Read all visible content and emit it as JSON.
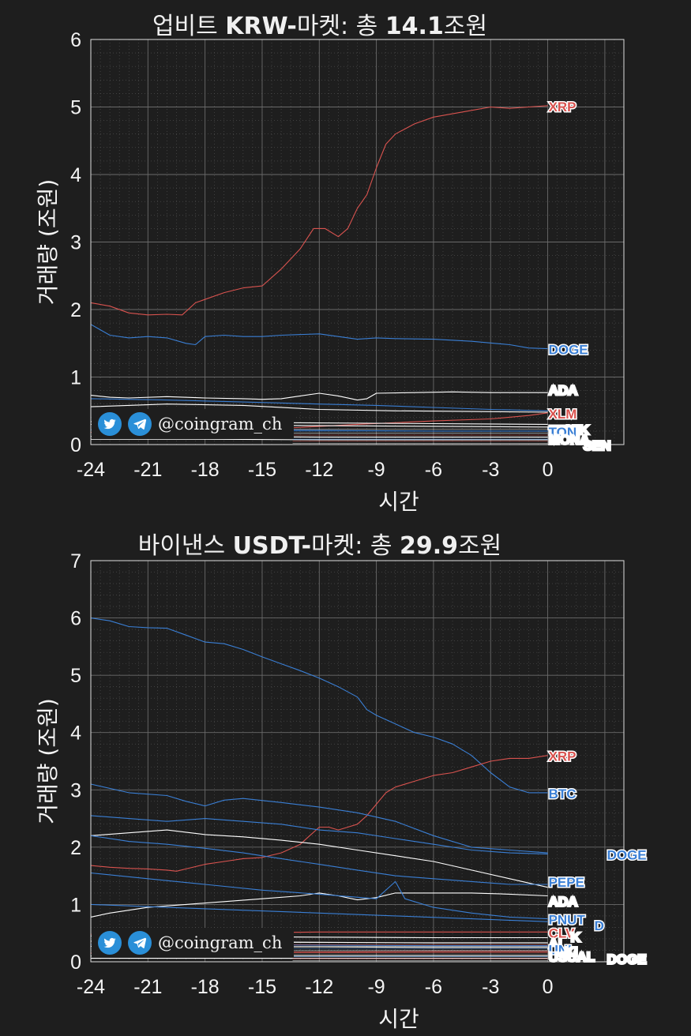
{
  "charts": [
    {
      "title_prefix": "업비트 ",
      "title_bold1": "KRW-",
      "title_mid": "마켓: 총 ",
      "title_bold2": "14.1",
      "title_suffix": "조원",
      "ylabel": "거래량 (조원)",
      "xlabel": "시간",
      "credit": "@coingram_ch"
    },
    {
      "title_prefix": "바이낸스 ",
      "title_bold1": "USDT-",
      "title_mid": "마켓: 총 ",
      "title_bold2": "29.9",
      "title_suffix": "조원",
      "ylabel": "거래량 (조원)",
      "xlabel": "시간",
      "credit": "@coingram_ch"
    }
  ],
  "colors": {
    "background": "#1e1e1e",
    "red": "#d9534f",
    "blue": "#3a7fd5",
    "white": "#ffffff",
    "grid": "#6a6a6a"
  },
  "chart_data": [
    {
      "type": "line",
      "title": "업비트 KRW-마켓: 총 14.1조원",
      "xlabel": "시간",
      "ylabel": "거래량 (조원)",
      "xlim": [
        -24,
        4
      ],
      "ylim": [
        0,
        6
      ],
      "xticks": [
        -24,
        -21,
        -18,
        -15,
        -12,
        -9,
        -6,
        -3,
        0
      ],
      "yticks": [
        0,
        1,
        2,
        3,
        4,
        5,
        6
      ],
      "grid": true,
      "series": [
        {
          "name": "XRP",
          "color": "red",
          "labeled": true,
          "x": [
            -24,
            -23,
            -22,
            -21,
            -20,
            -19.2,
            -18.5,
            -17,
            -16,
            -15,
            -14,
            -13,
            -12.3,
            -11.7,
            -11,
            -10.5,
            -10,
            -9.5,
            -9,
            -8.5,
            -8,
            -7,
            -6,
            -4,
            -3,
            -2,
            -1,
            0
          ],
          "y": [
            2.1,
            2.05,
            1.95,
            1.92,
            1.93,
            1.92,
            2.1,
            2.25,
            2.32,
            2.35,
            2.6,
            2.9,
            3.2,
            3.2,
            3.08,
            3.2,
            3.5,
            3.7,
            4.1,
            4.45,
            4.6,
            4.75,
            4.85,
            4.95,
            5.0,
            4.98,
            5.0,
            5.02
          ]
        },
        {
          "name": "DOGE",
          "color": "blue",
          "labeled": true,
          "x": [
            -24,
            -23,
            -22,
            -21,
            -20,
            -19,
            -18.5,
            -18,
            -17,
            -16,
            -15,
            -14,
            -12,
            -11,
            -10,
            -9,
            -8,
            -6,
            -4,
            -2,
            -1,
            0
          ],
          "y": [
            1.78,
            1.62,
            1.58,
            1.6,
            1.58,
            1.5,
            1.48,
            1.6,
            1.62,
            1.6,
            1.6,
            1.62,
            1.64,
            1.6,
            1.56,
            1.58,
            1.57,
            1.56,
            1.53,
            1.48,
            1.43,
            1.42
          ]
        },
        {
          "name": "ADA",
          "color": "white",
          "labeled": true,
          "x": [
            -24,
            -23,
            -22,
            -20,
            -18,
            -16,
            -15,
            -14,
            -13,
            -12,
            -11,
            -10,
            -9.5,
            -9,
            -7,
            -5,
            -3,
            0
          ],
          "y": [
            0.73,
            0.7,
            0.69,
            0.71,
            0.69,
            0.68,
            0.67,
            0.68,
            0.72,
            0.76,
            0.72,
            0.66,
            0.68,
            0.76,
            0.77,
            0.78,
            0.77,
            0.77
          ]
        },
        {
          "name": "",
          "color": "blue",
          "labeled": false,
          "x": [
            -24,
            -20,
            -16,
            -12,
            -9,
            -6,
            -3,
            0
          ],
          "y": [
            0.68,
            0.66,
            0.63,
            0.6,
            0.58,
            0.55,
            0.52,
            0.5
          ]
        },
        {
          "name": "",
          "color": "white",
          "labeled": false,
          "x": [
            -24,
            -20,
            -16,
            -12,
            -8,
            -4,
            0
          ],
          "y": [
            0.56,
            0.6,
            0.58,
            0.52,
            0.5,
            0.49,
            0.48
          ]
        },
        {
          "name": "XLM",
          "color": "red",
          "labeled": true,
          "x": [
            -24,
            -18,
            -14,
            -10,
            -6,
            -3,
            -1,
            0
          ],
          "y": [
            0.18,
            0.2,
            0.24,
            0.3,
            0.35,
            0.38,
            0.43,
            0.47
          ]
        },
        {
          "name": "ETC",
          "color": "white",
          "labeled": true,
          "x": [
            -24,
            -18,
            -12,
            -6,
            0
          ],
          "y": [
            0.34,
            0.33,
            0.32,
            0.31,
            0.3
          ]
        },
        {
          "name": "HIK",
          "color": "white",
          "labeled": true,
          "x": [
            -24,
            -18,
            -12,
            -6,
            0
          ],
          "y": [
            0.3,
            0.29,
            0.28,
            0.27,
            0.26
          ]
        },
        {
          "name": "TON",
          "color": "blue",
          "labeled": true,
          "x": [
            -24,
            -18,
            -12,
            -6,
            0
          ],
          "y": [
            0.22,
            0.22,
            0.21,
            0.2,
            0.2
          ]
        },
        {
          "name": "MONA",
          "color": "white",
          "labeled": true,
          "x": [
            -24,
            -18,
            -12,
            -6,
            0
          ],
          "y": [
            0.12,
            0.12,
            0.11,
            0.11,
            0.11
          ]
        },
        {
          "name": "SEN",
          "color": "white",
          "labeled": true,
          "x": [
            -24,
            -18,
            -12,
            -6,
            0
          ],
          "y": [
            0.08,
            0.08,
            0.07,
            0.07,
            0.07
          ]
        }
      ]
    },
    {
      "type": "line",
      "title": "바이낸스 USDT-마켓: 총 29.9조원",
      "xlabel": "시간",
      "ylabel": "거래량 (조원)",
      "xlim": [
        -24,
        4
      ],
      "ylim": [
        0,
        7
      ],
      "xticks": [
        -24,
        -21,
        -18,
        -15,
        -12,
        -9,
        -6,
        -3,
        0
      ],
      "yticks": [
        0,
        1,
        2,
        3,
        4,
        5,
        6,
        7
      ],
      "grid": true,
      "series": [
        {
          "name": "BTC",
          "color": "blue",
          "labeled": true,
          "x": [
            -24,
            -23,
            -22,
            -21,
            -20,
            -19,
            -18,
            -17,
            -16,
            -15,
            -14,
            -13,
            -12,
            -11,
            -10,
            -9.5,
            -9,
            -8,
            -7,
            -6,
            -5,
            -4,
            -3,
            -2,
            -1,
            0
          ],
          "y": [
            6.0,
            5.95,
            5.85,
            5.83,
            5.82,
            5.7,
            5.58,
            5.55,
            5.45,
            5.32,
            5.2,
            5.08,
            4.95,
            4.8,
            4.62,
            4.4,
            4.3,
            4.15,
            4.0,
            3.92,
            3.8,
            3.6,
            3.3,
            3.05,
            2.95,
            2.95
          ]
        },
        {
          "name": "XRP",
          "color": "red",
          "labeled": true,
          "x": [
            -24,
            -23,
            -22,
            -21,
            -20,
            -19.5,
            -19,
            -18,
            -17,
            -16,
            -15,
            -14,
            -13,
            -12.5,
            -12,
            -11.5,
            -11,
            -10.5,
            -10,
            -9.5,
            -9,
            -8.5,
            -8,
            -7,
            -6,
            -5,
            -4,
            -3,
            -2,
            -1,
            0
          ],
          "y": [
            1.68,
            1.65,
            1.63,
            1.62,
            1.6,
            1.58,
            1.62,
            1.7,
            1.75,
            1.8,
            1.82,
            1.9,
            2.05,
            2.2,
            2.35,
            2.35,
            2.3,
            2.35,
            2.4,
            2.55,
            2.75,
            2.95,
            3.05,
            3.15,
            3.25,
            3.3,
            3.4,
            3.5,
            3.55,
            3.55,
            3.6
          ]
        },
        {
          "name": "",
          "color": "blue",
          "labeled": false,
          "x": [
            -24,
            -22,
            -20,
            -19,
            -18,
            -17,
            -16,
            -14,
            -12,
            -10,
            -8,
            -6,
            -4,
            -2,
            0
          ],
          "y": [
            3.1,
            2.95,
            2.9,
            2.8,
            2.72,
            2.82,
            2.85,
            2.78,
            2.7,
            2.6,
            2.45,
            2.2,
            2.0,
            1.95,
            1.9
          ]
        },
        {
          "name": "DOGE",
          "color": "blue",
          "labeled": true,
          "x": [
            -24,
            -22,
            -20,
            -18,
            -16,
            -14,
            -12,
            -10,
            -8,
            -6,
            -4,
            -2,
            0
          ],
          "y": [
            2.55,
            2.5,
            2.45,
            2.5,
            2.45,
            2.4,
            2.3,
            2.25,
            2.15,
            2.05,
            1.95,
            1.9,
            1.88
          ]
        },
        {
          "name": "",
          "color": "white",
          "labeled": false,
          "x": [
            -24,
            -22,
            -20,
            -18,
            -16,
            -14,
            -12,
            -10,
            -8,
            -6,
            -4,
            -2,
            0
          ],
          "y": [
            2.2,
            2.25,
            2.3,
            2.22,
            2.18,
            2.12,
            2.05,
            1.95,
            1.85,
            1.75,
            1.6,
            1.45,
            1.3
          ]
        },
        {
          "name": "PEPE",
          "color": "blue",
          "labeled": true,
          "x": [
            -24,
            -22,
            -20,
            -18,
            -16,
            -14,
            -12,
            -10,
            -8,
            -6,
            -4,
            -2,
            0
          ],
          "y": [
            2.2,
            2.1,
            2.05,
            1.98,
            1.9,
            1.8,
            1.7,
            1.6,
            1.5,
            1.45,
            1.4,
            1.35,
            1.35
          ]
        },
        {
          "name": "ADA",
          "color": "white",
          "labeled": true,
          "x": [
            -24,
            -23,
            -21,
            -19,
            -17,
            -15,
            -13,
            -12,
            -11,
            -10,
            -9,
            -8,
            -6,
            -4,
            -2,
            0
          ],
          "y": [
            0.78,
            0.85,
            0.95,
            1.0,
            1.05,
            1.1,
            1.15,
            1.2,
            1.15,
            1.08,
            1.12,
            1.2,
            1.2,
            1.2,
            1.18,
            1.15
          ]
        },
        {
          "name": "PNUT",
          "color": "blue",
          "labeled": true,
          "x": [
            -24,
            -21,
            -18,
            -15,
            -12,
            -9,
            -8,
            -7.5,
            -6,
            -4,
            -2,
            0
          ],
          "y": [
            1.55,
            1.45,
            1.35,
            1.25,
            1.18,
            1.1,
            1.4,
            1.1,
            0.95,
            0.85,
            0.78,
            0.75
          ]
        },
        {
          "name": "D",
          "color": "blue",
          "labeled": true,
          "x": [
            -24,
            -20,
            -16,
            -12,
            -8,
            -4,
            0
          ],
          "y": [
            1.0,
            0.95,
            0.9,
            0.85,
            0.8,
            0.75,
            0.7
          ]
        },
        {
          "name": "CLV",
          "color": "red",
          "labeled": true,
          "x": [
            -24,
            -18,
            -12,
            -6,
            0
          ],
          "y": [
            0.48,
            0.5,
            0.52,
            0.52,
            0.52
          ]
        },
        {
          "name": "K",
          "color": "white",
          "labeled": true,
          "x": [
            -24,
            -18,
            -12,
            -6,
            0
          ],
          "y": [
            0.45,
            0.44,
            0.43,
            0.42,
            0.42
          ]
        },
        {
          "name": "AI",
          "color": "white",
          "labeled": true,
          "x": [
            -24,
            -18,
            -12,
            -6,
            0
          ],
          "y": [
            0.36,
            0.35,
            0.34,
            0.33,
            0.33
          ]
        },
        {
          "name": "UNI",
          "color": "blue",
          "labeled": true,
          "x": [
            -24,
            -18,
            -12,
            -6,
            0
          ],
          "y": [
            0.3,
            0.3,
            0.29,
            0.28,
            0.28
          ]
        },
        {
          "name": "KI",
          "color": "white",
          "labeled": true,
          "x": [
            -24,
            -18,
            -12,
            -6,
            0
          ],
          "y": [
            0.27,
            0.26,
            0.26,
            0.25,
            0.25
          ]
        },
        {
          "name": "USUAL",
          "color": "white",
          "labeled": true,
          "x": [
            -24,
            -18,
            -12,
            -6,
            0
          ],
          "y": [
            0.1,
            0.1,
            0.1,
            0.1,
            0.1
          ]
        },
        {
          "name": "DOGE",
          "color": "white",
          "labeled": true,
          "x": [
            -24,
            -18,
            -12,
            -6,
            0
          ],
          "y": [
            0.06,
            0.06,
            0.06,
            0.06,
            0.06
          ]
        },
        {
          "name": "",
          "color": "red",
          "labeled": false,
          "x": [
            -24,
            -18,
            -12,
            -6,
            0
          ],
          "y": [
            0.15,
            0.16,
            0.17,
            0.18,
            0.18
          ]
        }
      ]
    }
  ]
}
